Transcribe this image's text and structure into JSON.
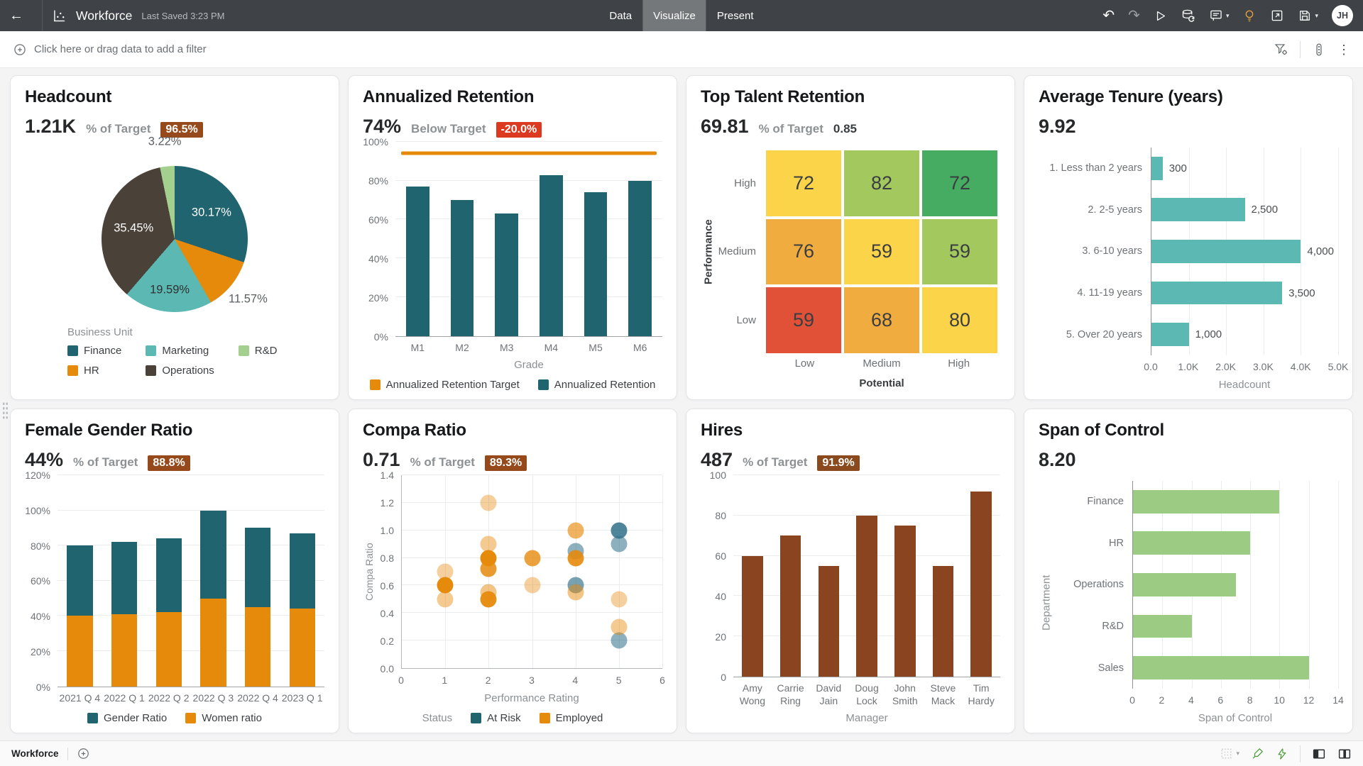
{
  "topbar": {
    "app_title": "Workforce",
    "last_saved": "Last Saved 3:23 PM",
    "tabs": [
      {
        "label": "Data",
        "active": false
      },
      {
        "label": "Visualize",
        "active": true
      },
      {
        "label": "Present",
        "active": false
      }
    ],
    "action_icons": [
      "undo",
      "redo",
      "run",
      "refresh-data",
      "comments",
      "insights-bulb",
      "open-in-new-window",
      "save"
    ],
    "avatar_initials": "JH",
    "colors": {
      "bar_bg": "#3F4347",
      "active_tab_bg": "#75787B",
      "bulb": "#E8A33D"
    }
  },
  "filterbar": {
    "prompt": "Click here or drag data to add a filter",
    "right_icons": [
      "filter-settings",
      "canvas-properties",
      "more-options"
    ]
  },
  "bottombar": {
    "canvas_tab": "Workforce",
    "right_icons": [
      "canvas-layout",
      "brush",
      "auto-apply-bolt",
      "panel-left",
      "panel-center"
    ]
  },
  "palette": {
    "teal": "#20646F",
    "teal_light": "#5CB8B2",
    "orange": "#E68A0C",
    "green_bar": "#9CCB83",
    "green_light": "#A3CF8F",
    "brown_bar": "#8A4420",
    "dark_brown": "#4A4139",
    "badge_brown": "#964A1C",
    "badge_red": "#DC3A20"
  },
  "tiles": [
    {
      "title": "Headcount",
      "kpi": "1.21K",
      "target_label": "% of Target",
      "badge": "96.5%",
      "badge_bg": "#964A1C",
      "chart_data": {
        "type": "pie",
        "legend_title": "Business Unit",
        "slices": [
          {
            "label": "Finance",
            "value": 30.17,
            "text": "30.17%",
            "color": "#20646F",
            "text_color": "#FFFFFF",
            "label_r": 0.62
          },
          {
            "label": "HR",
            "value": 11.57,
            "text": "11.57%",
            "color": "#E68A0C",
            "text_color": "#5A5E61",
            "label_r": 1.3
          },
          {
            "label": "Marketing",
            "value": 19.59,
            "text": "19.59%",
            "color": "#5CB8B2",
            "text_color": "#2F3133",
            "label_r": 0.7
          },
          {
            "label": "Operations",
            "value": 35.45,
            "text": "35.45%",
            "color": "#4A4139",
            "text_color": "#FFFFFF",
            "label_r": 0.58
          },
          {
            "label": "R&D",
            "value": 3.22,
            "text": "3.22%",
            "color": "#A3CF8F",
            "text_color": "#5A5E61",
            "label_r": 1.34
          }
        ],
        "legend": [
          {
            "label": "Finance",
            "color": "#20646F"
          },
          {
            "label": "Marketing",
            "color": "#5CB8B2"
          },
          {
            "label": "R&D",
            "color": "#A3CF8F"
          },
          {
            "label": "HR",
            "color": "#E68A0C"
          },
          {
            "label": "Operations",
            "color": "#4A4139"
          }
        ]
      }
    },
    {
      "title": "Annualized Retention",
      "kpi": "74%",
      "target_label": "Below Target",
      "badge": "-20.0%",
      "badge_bg": "#DC3A20",
      "chart_data": {
        "type": "bar",
        "categories": [
          "M1",
          "M2",
          "M3",
          "M4",
          "M5",
          "M6"
        ],
        "values": [
          77,
          70,
          63,
          83,
          74,
          80
        ],
        "target_line": 94,
        "ylim": [
          0,
          100
        ],
        "yticks": [
          "0%",
          "20%",
          "40%",
          "60%",
          "80%",
          "100%"
        ],
        "xlabel": "Grade",
        "bar_color": "#20646F",
        "bar_w": "52%",
        "legend": [
          {
            "label": "Annualized Retention Target",
            "color": "#E68A0C"
          },
          {
            "label": "Annualized Retention",
            "color": "#20646F"
          }
        ]
      }
    },
    {
      "title": "Top Talent Retention",
      "kpi": "69.81",
      "target_label": "% of Target",
      "target_plain": "0.85",
      "chart_data": {
        "type": "heatmap",
        "rows": [
          "High",
          "Medium",
          "Low"
        ],
        "cols": [
          "Low",
          "Medium",
          "High"
        ],
        "ylabel": "Performance",
        "xlabel": "Potential",
        "values": [
          [
            72,
            82,
            72
          ],
          [
            76,
            59,
            59
          ],
          [
            59,
            68,
            80
          ]
        ],
        "colors": [
          [
            "#FBD449",
            "#A3C85E",
            "#46AC61"
          ],
          [
            "#F1AC40",
            "#FBD449",
            "#A3C85E"
          ],
          [
            "#E05138",
            "#F1AC40",
            "#FBD449"
          ]
        ]
      }
    },
    {
      "title": "Average Tenure (years)",
      "kpi": "9.92",
      "chart_data": {
        "type": "hbar",
        "categories": [
          "1. Less than 2 years",
          "2. 2-5 years",
          "3. 6-10 years",
          "4. 11-19 years",
          "5. Over 20 years"
        ],
        "values": [
          300,
          2500,
          4000,
          3500,
          1000
        ],
        "data_labels": [
          "300",
          "2,500",
          "4,000",
          "3,500",
          "1,000"
        ],
        "xlim": [
          0,
          5000
        ],
        "xticks": [
          "0.0",
          "1.0K",
          "2.0K",
          "3.0K",
          "4.0K",
          "5.0K"
        ],
        "xlabel": "Headcount",
        "bar_color": "#5CB8B2",
        "label_w": 158
      }
    },
    {
      "title": "Female Gender Ratio",
      "kpi": "44%",
      "target_label": "% of Target",
      "badge": "88.8%",
      "badge_bg": "#964A1C",
      "chart_data": {
        "type": "stacked",
        "categories": [
          "2021 Q 4",
          "2022 Q 1",
          "2022 Q 2",
          "2022 Q 3",
          "2022 Q 4",
          "2023 Q 1"
        ],
        "series": [
          {
            "name": "Women ratio",
            "color": "#E68A0C",
            "values": [
              40,
              41,
              42,
              50,
              45,
              44
            ]
          },
          {
            "name": "Gender Ratio",
            "color": "#20646F",
            "values": [
              40,
              41,
              42,
              50,
              45,
              43
            ]
          }
        ],
        "ylim": [
          0,
          120
        ],
        "yticks": [
          "0%",
          "20%",
          "40%",
          "60%",
          "80%",
          "100%",
          "120%"
        ],
        "bar_w": "58%",
        "legend": [
          {
            "label": "Gender Ratio",
            "color": "#20646F"
          },
          {
            "label": "Women ratio",
            "color": "#E68A0C"
          }
        ]
      }
    },
    {
      "title": "Compa Ratio",
      "kpi": "0.71",
      "target_label": "% of Target",
      "badge": "89.3%",
      "badge_bg": "#964A1C",
      "chart_data": {
        "type": "scatter",
        "xlabel": "Performance Rating",
        "ylabel": "Compa Ratio",
        "xlim": [
          0,
          6
        ],
        "ylim": [
          0,
          1.4
        ],
        "xticks": [
          "0",
          "1",
          "2",
          "3",
          "4",
          "5",
          "6"
        ],
        "yticks": [
          "0.0",
          "0.2",
          "0.4",
          "0.6",
          "0.8",
          "1.0",
          "1.2",
          "1.4"
        ],
        "legend_title": "Status",
        "series": [
          {
            "name": "At Risk",
            "color": "#2F7088",
            "points": [
              [
                4,
                0.85,
                0.55
              ],
              [
                4,
                0.6,
                0.65
              ],
              [
                5,
                1.0,
                0.85
              ],
              [
                5,
                0.9,
                0.55
              ],
              [
                5,
                0.2,
                0.55
              ]
            ]
          },
          {
            "name": "Employed",
            "color": "#E68A0C",
            "points": [
              [
                1,
                0.7,
                0.4
              ],
              [
                1,
                0.6,
                1
              ],
              [
                1,
                0.5,
                0.45
              ],
              [
                2,
                1.2,
                0.4
              ],
              [
                2,
                0.9,
                0.45
              ],
              [
                2,
                0.8,
                1
              ],
              [
                2,
                0.72,
                0.85
              ],
              [
                2,
                0.55,
                0.5
              ],
              [
                2,
                0.5,
                0.95
              ],
              [
                3,
                0.8,
                0.8
              ],
              [
                3,
                0.6,
                0.4
              ],
              [
                4,
                1.0,
                0.65
              ],
              [
                4,
                0.8,
                0.9
              ],
              [
                4,
                0.55,
                0.5
              ],
              [
                5,
                0.5,
                0.4
              ],
              [
                5,
                0.3,
                0.45
              ]
            ]
          }
        ],
        "legend": [
          {
            "label": "At Risk",
            "color": "#20646F"
          },
          {
            "label": "Employed",
            "color": "#E68A0C"
          }
        ]
      }
    },
    {
      "title": "Hires",
      "kpi": "487",
      "target_label": "% of Target",
      "badge": "91.9%",
      "badge_bg": "#8A4A1E",
      "chart_data": {
        "type": "bar",
        "categories": [
          "Amy\nWong",
          "Carrie\nRing",
          "David\nJain",
          "Doug\nLock",
          "John\nSmith",
          "Steve\nMack",
          "Tim\nHardy"
        ],
        "values": [
          60,
          70,
          55,
          80,
          75,
          55,
          92
        ],
        "ylim": [
          0,
          100
        ],
        "yticks": [
          "0",
          "20",
          "40",
          "60",
          "80",
          "100"
        ],
        "xlabel": "Manager",
        "bar_color": "#8A4420",
        "bar_w": "55%"
      }
    },
    {
      "title": "Span of Control",
      "kpi": "8.20",
      "chart_data": {
        "type": "hbar",
        "categories": [
          "Finance",
          "HR",
          "Operations",
          "R&D",
          "Sales"
        ],
        "values": [
          10,
          8,
          7,
          4,
          12
        ],
        "xlim": [
          0,
          14
        ],
        "xticks": [
          "0",
          "2",
          "4",
          "6",
          "8",
          "10",
          "12",
          "14"
        ],
        "xlabel": "Span of Control",
        "ylabel": "Department",
        "bar_color": "#9CCB83",
        "label_w": 110
      }
    }
  ]
}
